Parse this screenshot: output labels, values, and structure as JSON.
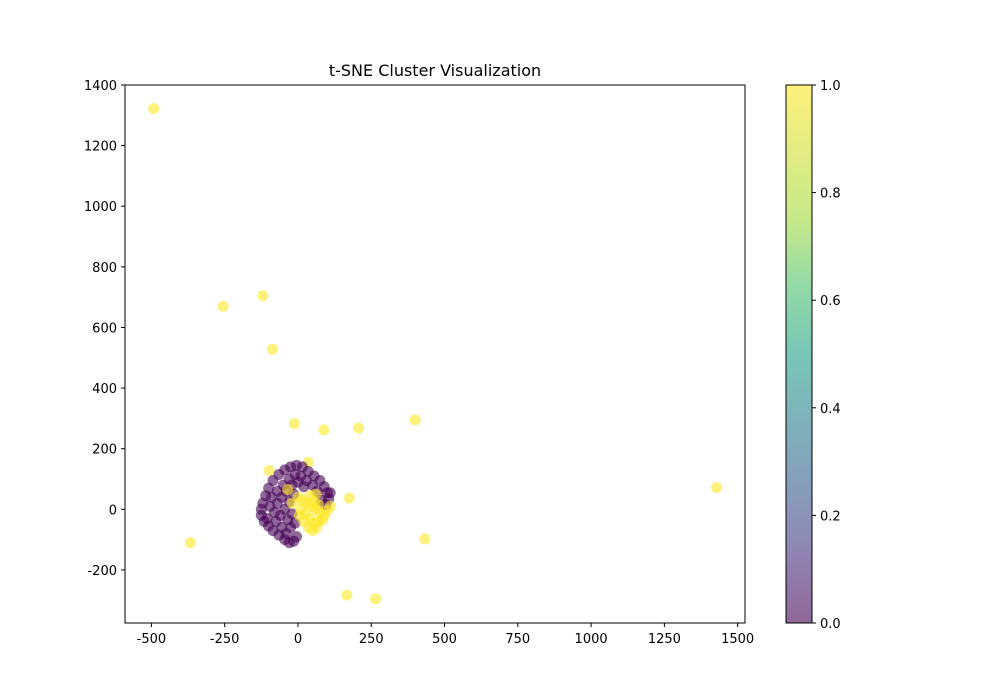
{
  "chart_data": {
    "type": "scatter",
    "title": "t-SNE Cluster Visualization",
    "xlabel": "",
    "ylabel": "",
    "xlim": [
      -590,
      1525
    ],
    "ylim": [
      -375,
      1400
    ],
    "xticks": [
      -500,
      -250,
      0,
      250,
      500,
      750,
      1000,
      1250,
      1500
    ],
    "yticks": [
      -200,
      0,
      200,
      400,
      600,
      800,
      1000,
      1200,
      1400
    ],
    "grid": false,
    "colormap": "viridis",
    "colorbar": {
      "min": 0.0,
      "max": 1.0,
      "ticks": [
        "0.0",
        "0.2",
        "0.4",
        "0.6",
        "0.8",
        "1.0"
      ]
    },
    "colors": {
      "class_0": "#440154",
      "class_1": "#fde725"
    },
    "alpha": 0.6,
    "points": [
      {
        "x": -492,
        "y": 1322,
        "c": 1
      },
      {
        "x": -255,
        "y": 670,
        "c": 1
      },
      {
        "x": -120,
        "y": 705,
        "c": 1
      },
      {
        "x": -87,
        "y": 528,
        "c": 1
      },
      {
        "x": -12,
        "y": 283,
        "c": 1
      },
      {
        "x": 88,
        "y": 262,
        "c": 1
      },
      {
        "x": 207,
        "y": 268,
        "c": 1
      },
      {
        "x": 400,
        "y": 295,
        "c": 1
      },
      {
        "x": -98,
        "y": 128,
        "c": 1
      },
      {
        "x": 35,
        "y": 155,
        "c": 1
      },
      {
        "x": 175,
        "y": 37,
        "c": 1
      },
      {
        "x": 1428,
        "y": 72,
        "c": 1
      },
      {
        "x": -367,
        "y": -110,
        "c": 1
      },
      {
        "x": 433,
        "y": -98,
        "c": 1
      },
      {
        "x": 167,
        "y": -283,
        "c": 1
      },
      {
        "x": 265,
        "y": -295,
        "c": 1
      },
      {
        "x": -120,
        "y": 20,
        "c": 0
      },
      {
        "x": -110,
        "y": 45,
        "c": 0
      },
      {
        "x": -100,
        "y": 70,
        "c": 0
      },
      {
        "x": -85,
        "y": 95,
        "c": 0
      },
      {
        "x": -65,
        "y": 115,
        "c": 0
      },
      {
        "x": -45,
        "y": 130,
        "c": 0
      },
      {
        "x": -25,
        "y": 140,
        "c": 0
      },
      {
        "x": -5,
        "y": 145,
        "c": 0
      },
      {
        "x": 15,
        "y": 140,
        "c": 0
      },
      {
        "x": 35,
        "y": 125,
        "c": 0
      },
      {
        "x": 55,
        "y": 110,
        "c": 0
      },
      {
        "x": 75,
        "y": 95,
        "c": 0
      },
      {
        "x": 90,
        "y": 75,
        "c": 0
      },
      {
        "x": 100,
        "y": 55,
        "c": 0
      },
      {
        "x": 105,
        "y": 35,
        "c": 0
      },
      {
        "x": -125,
        "y": 0,
        "c": 0
      },
      {
        "x": -125,
        "y": -20,
        "c": 0
      },
      {
        "x": -115,
        "y": -40,
        "c": 0
      },
      {
        "x": -100,
        "y": -55,
        "c": 0
      },
      {
        "x": -85,
        "y": -70,
        "c": 0
      },
      {
        "x": -65,
        "y": -85,
        "c": 0
      },
      {
        "x": -45,
        "y": -100,
        "c": 0
      },
      {
        "x": -30,
        "y": -110,
        "c": 0
      },
      {
        "x": -15,
        "y": -105,
        "c": 0
      },
      {
        "x": -5,
        "y": -90,
        "c": 0
      },
      {
        "x": -90,
        "y": 40,
        "c": 0
      },
      {
        "x": -70,
        "y": 60,
        "c": 0
      },
      {
        "x": -50,
        "y": 80,
        "c": 0
      },
      {
        "x": -30,
        "y": 100,
        "c": 0
      },
      {
        "x": -10,
        "y": 115,
        "c": 0
      },
      {
        "x": 10,
        "y": 110,
        "c": 0
      },
      {
        "x": 30,
        "y": 95,
        "c": 0
      },
      {
        "x": 50,
        "y": 80,
        "c": 0
      },
      {
        "x": 65,
        "y": 60,
        "c": 0
      },
      {
        "x": -95,
        "y": 10,
        "c": 0
      },
      {
        "x": -80,
        "y": -10,
        "c": 0
      },
      {
        "x": -70,
        "y": 20,
        "c": 0
      },
      {
        "x": -55,
        "y": 40,
        "c": 0
      },
      {
        "x": -40,
        "y": 60,
        "c": 0
      },
      {
        "x": -20,
        "y": 80,
        "c": 0
      },
      {
        "x": 0,
        "y": 90,
        "c": 0
      },
      {
        "x": 20,
        "y": 75,
        "c": 0
      },
      {
        "x": -60,
        "y": -20,
        "c": 0
      },
      {
        "x": -45,
        "y": 0,
        "c": 0
      },
      {
        "x": -30,
        "y": 25,
        "c": 0
      },
      {
        "x": -15,
        "y": 50,
        "c": 0
      },
      {
        "x": -75,
        "y": -40,
        "c": 0
      },
      {
        "x": -55,
        "y": -60,
        "c": 0
      },
      {
        "x": -40,
        "y": -80,
        "c": 0
      },
      {
        "x": -25,
        "y": -60,
        "c": 0
      },
      {
        "x": -35,
        "y": -35,
        "c": 0
      },
      {
        "x": -20,
        "y": -15,
        "c": 0
      },
      {
        "x": -10,
        "y": -45,
        "c": 0
      },
      {
        "x": 80,
        "y": 30,
        "c": 0
      },
      {
        "x": 95,
        "y": 15,
        "c": 0
      },
      {
        "x": 110,
        "y": 55,
        "c": 0
      },
      {
        "x": -105,
        "y": -30,
        "c": 0
      },
      {
        "x": 0,
        "y": 40,
        "c": 1
      },
      {
        "x": 15,
        "y": 30,
        "c": 1
      },
      {
        "x": 30,
        "y": 20,
        "c": 1
      },
      {
        "x": 45,
        "y": 10,
        "c": 1
      },
      {
        "x": 60,
        "y": 0,
        "c": 1
      },
      {
        "x": 75,
        "y": -10,
        "c": 1
      },
      {
        "x": 90,
        "y": -20,
        "c": 1
      },
      {
        "x": 100,
        "y": -5,
        "c": 1
      },
      {
        "x": 110,
        "y": 10,
        "c": 1
      },
      {
        "x": 10,
        "y": 0,
        "c": 1
      },
      {
        "x": 25,
        "y": -15,
        "c": 1
      },
      {
        "x": 40,
        "y": -30,
        "c": 1
      },
      {
        "x": 55,
        "y": -45,
        "c": 1
      },
      {
        "x": 70,
        "y": -40,
        "c": 1
      },
      {
        "x": 85,
        "y": -35,
        "c": 1
      },
      {
        "x": 35,
        "y": -60,
        "c": 1
      },
      {
        "x": 50,
        "y": -70,
        "c": 1
      },
      {
        "x": 65,
        "y": -60,
        "c": 1
      },
      {
        "x": 20,
        "y": -40,
        "c": 1
      },
      {
        "x": 5,
        "y": -20,
        "c": 1
      },
      {
        "x": 55,
        "y": 25,
        "c": 1
      },
      {
        "x": 70,
        "y": 15,
        "c": 1
      },
      {
        "x": 40,
        "y": 45,
        "c": 1
      },
      {
        "x": -20,
        "y": 20,
        "c": 1
      },
      {
        "x": -35,
        "y": 65,
        "c": 1
      },
      {
        "x": 60,
        "y": 50,
        "c": 1
      }
    ]
  }
}
